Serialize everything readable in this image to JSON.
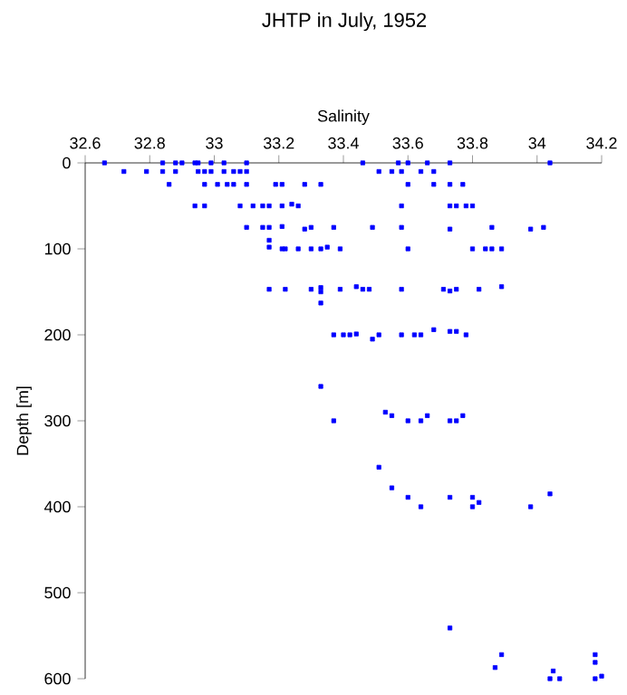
{
  "chart_data": {
    "type": "scatter",
    "title": "JHTP in July, 1952",
    "xlabel": "Salinity",
    "ylabel": "Depth [m]",
    "xlim": [
      32.6,
      34.2
    ],
    "ylim": [
      600,
      0
    ],
    "xticks": [
      32.6,
      32.8,
      33,
      33.2,
      33.4,
      33.6,
      33.8,
      34,
      34.2
    ],
    "yticks": [
      0,
      100,
      200,
      300,
      400,
      500,
      600
    ],
    "marker": "square",
    "grid": false,
    "series": [
      {
        "color": "#0000ff",
        "x": [
          32.66,
          32.84,
          32.88,
          32.9,
          32.94,
          32.95,
          32.99,
          33.03,
          33.1,
          33.46,
          33.57,
          33.6,
          33.66,
          33.73,
          34.04,
          32.72,
          32.79,
          32.84,
          32.88,
          32.95,
          32.97,
          32.99,
          33.03,
          33.06,
          33.08,
          33.1,
          33.51,
          33.55,
          33.58,
          33.64,
          33.68,
          32.86,
          32.97,
          33.01,
          33.04,
          33.06,
          33.1,
          33.19,
          33.21,
          33.28,
          33.33,
          33.6,
          33.68,
          33.73,
          33.77,
          32.94,
          32.97,
          33.08,
          33.12,
          33.15,
          33.17,
          33.21,
          33.24,
          33.26,
          33.58,
          33.73,
          33.75,
          33.78,
          33.8,
          33.1,
          33.15,
          33.17,
          33.21,
          33.28,
          33.3,
          33.37,
          33.49,
          33.58,
          33.73,
          33.86,
          33.98,
          34.02,
          33.17,
          33.17,
          33.21,
          33.22,
          33.26,
          33.3,
          33.33,
          33.35,
          33.39,
          33.6,
          33.8,
          33.84,
          33.86,
          33.89,
          33.17,
          33.22,
          33.3,
          33.33,
          33.33,
          33.39,
          33.44,
          33.46,
          33.48,
          33.58,
          33.71,
          33.73,
          33.75,
          33.82,
          33.89,
          33.33,
          33.37,
          33.4,
          33.42,
          33.44,
          33.49,
          33.51,
          33.58,
          33.62,
          33.64,
          33.68,
          33.73,
          33.75,
          33.78,
          33.33,
          33.37,
          33.53,
          33.55,
          33.6,
          33.64,
          33.66,
          33.73,
          33.75,
          33.77,
          33.51,
          33.55,
          33.6,
          33.73,
          33.8,
          33.82,
          33.64,
          33.8,
          33.98,
          34.04,
          33.73,
          33.89,
          34.18,
          34.18,
          33.87,
          34.05,
          34.2,
          34.04,
          34.07,
          34.18
        ],
        "values": [
          0,
          0,
          0,
          0,
          0,
          0,
          0,
          0,
          0,
          0,
          0,
          0,
          0,
          0,
          0,
          10,
          10,
          10,
          10,
          10,
          10,
          10,
          10,
          10,
          10,
          10,
          10,
          10,
          10,
          10,
          10,
          25,
          25,
          25,
          25,
          25,
          25,
          25,
          25,
          25,
          25,
          25,
          25,
          25,
          25,
          50,
          50,
          50,
          50,
          50,
          50,
          50,
          48,
          50,
          50,
          50,
          50,
          50,
          50,
          75,
          75,
          75,
          74,
          77,
          75,
          75,
          75,
          75,
          77,
          75,
          77,
          75,
          90,
          98,
          100,
          100,
          100,
          100,
          100,
          98,
          100,
          100,
          100,
          100,
          100,
          100,
          147,
          147,
          147,
          145,
          150,
          147,
          144,
          147,
          147,
          147,
          147,
          149,
          147,
          147,
          144,
          163,
          200,
          200,
          200,
          199,
          205,
          200,
          200,
          200,
          200,
          194,
          196,
          196,
          200,
          260,
          300,
          290,
          294,
          300,
          300,
          294,
          300,
          300,
          294,
          354,
          378,
          389,
          389,
          389,
          395,
          400,
          400,
          400,
          385,
          541,
          572,
          572,
          581,
          587,
          591,
          597,
          600,
          600,
          600
        ]
      }
    ]
  }
}
